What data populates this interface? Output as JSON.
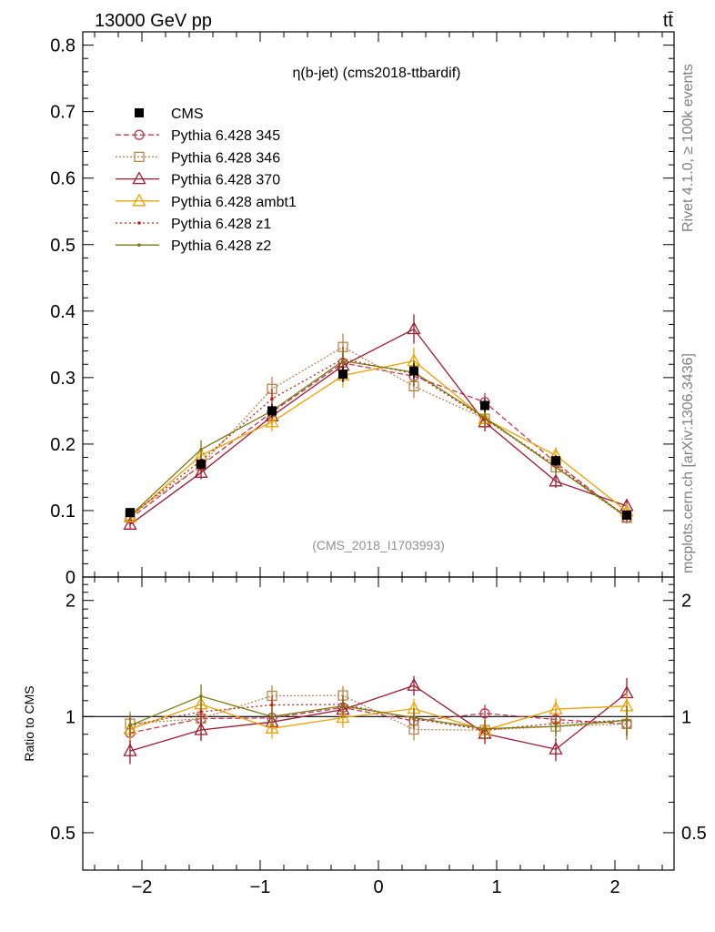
{
  "header": {
    "energy_label": "13000 GeV pp",
    "process_label": "tt̄",
    "side_label_top": "Rivet 4.1.0, ≥ 100k events",
    "side_label_bottom": "mcplots.cern.ch [arXiv:1306.3436]"
  },
  "chart_data": {
    "type": "line",
    "title": "η(b-jet) (cms2018-ttbardif)",
    "watermark": "(CMS_2018_I1703993)",
    "xlabel": "",
    "ylabel": "",
    "ratio_ylabel": "Ratio to CMS",
    "xlim": [
      -2.5,
      2.5
    ],
    "ylim": [
      0,
      0.82
    ],
    "ratio_ylim": [
      0.4,
      2.3
    ],
    "x_ticks": [
      -2,
      -1,
      0,
      1,
      2
    ],
    "x_tick_labels": [
      "−2",
      "−1",
      "0",
      "1",
      "2"
    ],
    "y_ticks": [
      0,
      0.1,
      0.2,
      0.3,
      0.4,
      0.5,
      0.6,
      0.7,
      0.8
    ],
    "y_tick_labels": [
      "0",
      "0.1",
      "0.2",
      "0.3",
      "0.4",
      "0.5",
      "0.6",
      "0.7",
      "0.8"
    ],
    "ratio_ticks": [
      0.5,
      1,
      2
    ],
    "ratio_tick_labels": [
      "0.5",
      "1",
      "2"
    ],
    "x": [
      -2.1,
      -1.5,
      -0.9,
      -0.3,
      0.3,
      0.9,
      1.5,
      2.1
    ],
    "data": {
      "name": "CMS",
      "values": [
        0.097,
        0.17,
        0.25,
        0.305,
        0.31,
        0.258,
        0.175,
        0.093
      ],
      "errors": [
        0.006,
        0.008,
        0.01,
        0.012,
        0.012,
        0.01,
        0.008,
        0.006
      ]
    },
    "series": [
      {
        "name": "Pythia 6.428 345",
        "color": "#c0394f",
        "dash": "6,3",
        "marker": "circle",
        "values": [
          0.088,
          0.168,
          0.248,
          0.322,
          0.302,
          0.263,
          0.172,
          0.089
        ],
        "errors": [
          0.006,
          0.01,
          0.014,
          0.018,
          0.016,
          0.014,
          0.01,
          0.008
        ]
      },
      {
        "name": "Pythia 6.428 346",
        "color": "#b8864b",
        "dash": "2,2",
        "marker": "square",
        "values": [
          0.093,
          0.168,
          0.283,
          0.346,
          0.287,
          0.238,
          0.165,
          0.089
        ],
        "errors": [
          0.007,
          0.01,
          0.018,
          0.02,
          0.018,
          0.014,
          0.01,
          0.008
        ]
      },
      {
        "name": "Pythia 6.428 370",
        "color": "#9e1a30",
        "dash": "",
        "marker": "triangle",
        "values": [
          0.079,
          0.157,
          0.242,
          0.318,
          0.373,
          0.233,
          0.144,
          0.107
        ],
        "errors": [
          0.006,
          0.01,
          0.014,
          0.018,
          0.022,
          0.014,
          0.01,
          0.01
        ]
      },
      {
        "name": "Pythia 6.428 ambt1",
        "color": "#f0a000",
        "dash": "",
        "marker": "triangle",
        "values": [
          0.09,
          0.183,
          0.233,
          0.303,
          0.325,
          0.238,
          0.183,
          0.099
        ],
        "errors": [
          0.006,
          0.01,
          0.014,
          0.018,
          0.02,
          0.014,
          0.012,
          0.008
        ]
      },
      {
        "name": "Pythia 6.428 z1",
        "color": "#c02010",
        "dash": "2,3",
        "marker": "dot",
        "values": [
          0.092,
          0.175,
          0.268,
          0.328,
          0.306,
          0.238,
          0.168,
          0.091
        ],
        "errors": [
          0.006,
          0.01,
          0.014,
          0.018,
          0.018,
          0.014,
          0.01,
          0.008
        ]
      },
      {
        "name": "Pythia 6.428 z2",
        "color": "#7a7a10",
        "dash": "",
        "marker": "dot",
        "values": [
          0.092,
          0.192,
          0.25,
          0.325,
          0.308,
          0.24,
          0.165,
          0.091
        ],
        "errors": [
          0.006,
          0.014,
          0.014,
          0.018,
          0.018,
          0.014,
          0.01,
          0.008
        ]
      }
    ]
  }
}
